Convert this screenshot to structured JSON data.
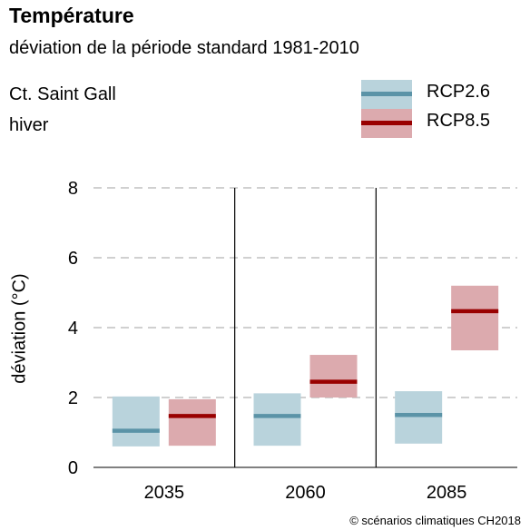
{
  "header": {
    "title": "Température",
    "subtitle": "déviation de la période standard 1981-2010",
    "region": "Ct. Saint Gall",
    "season": "hiver"
  },
  "credit": "© scénarios climatiques CH2018",
  "colors": {
    "rcp26_box": "#b9d3dc",
    "rcp26_line": "#5b93a7",
    "rcp85_box": "#dcaaae",
    "rcp85_line": "#990000",
    "grid": "#b4b4b4"
  },
  "chart_data": {
    "type": "box",
    "title": "Température",
    "subtitle": "déviation de la période standard 1981-2010",
    "xlabel": "",
    "ylabel": "déviation (°C)",
    "ylim": [
      0,
      8
    ],
    "yticks": [
      "0",
      "2",
      "4",
      "6",
      "8"
    ],
    "categories": [
      "2035",
      "2060",
      "2085"
    ],
    "grid": "horizontal dashed",
    "legend_position": "top-right",
    "series": [
      {
        "name": "RCP2.6",
        "median": [
          1.05,
          1.47,
          1.5
        ],
        "low": [
          0.6,
          0.62,
          0.68
        ],
        "high": [
          2.03,
          2.12,
          2.18
        ]
      },
      {
        "name": "RCP8.5",
        "median": [
          1.47,
          2.45,
          4.47
        ],
        "low": [
          0.62,
          2.0,
          3.35
        ],
        "high": [
          1.95,
          3.22,
          5.2
        ]
      }
    ]
  }
}
